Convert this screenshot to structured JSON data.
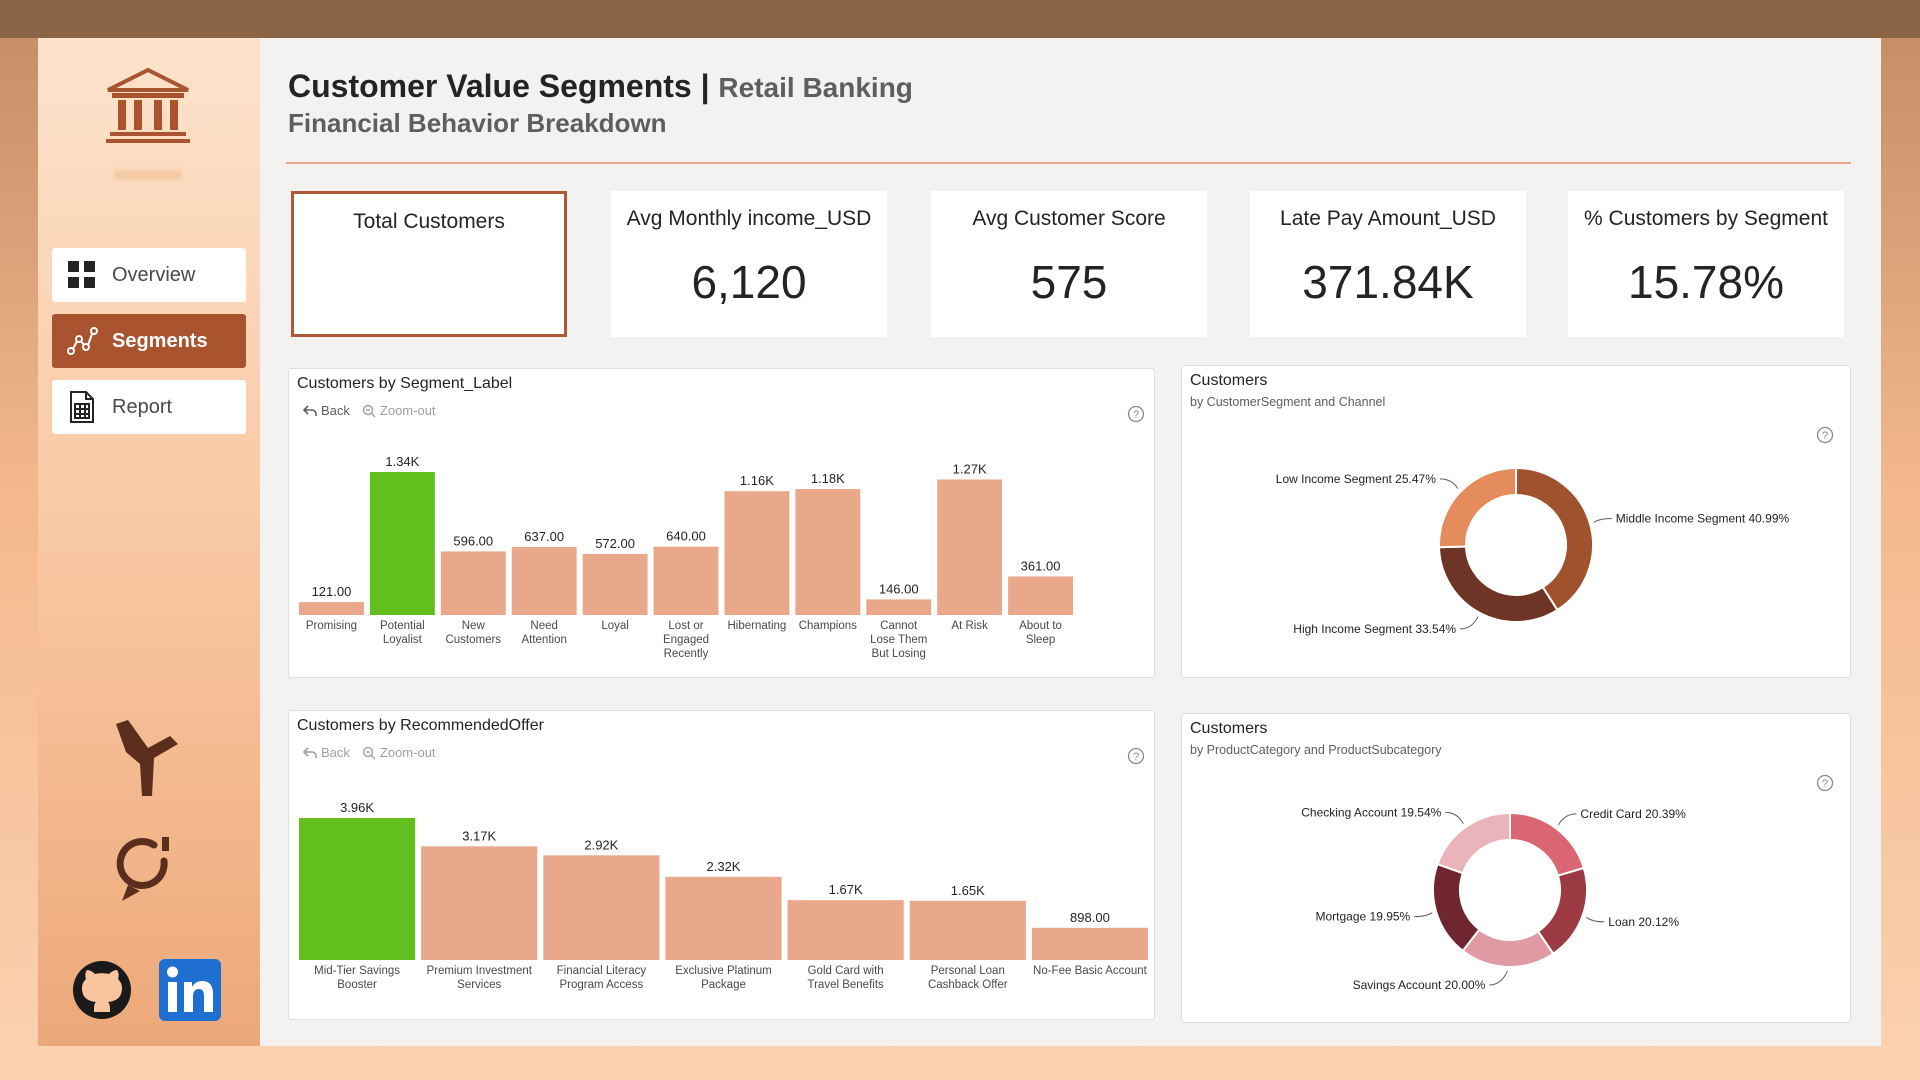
{
  "header": {
    "title": "Customer Value Segments |",
    "subtitle_inline": "Retail Banking",
    "subtitle": "Financial Behavior Breakdown"
  },
  "sidebar": {
    "nav": [
      {
        "label": "Overview",
        "icon": "grid-icon",
        "active": false
      },
      {
        "label": "Segments",
        "icon": "scatter-chart-icon",
        "active": true
      },
      {
        "label": "Report",
        "icon": "spreadsheet-icon",
        "active": false
      }
    ],
    "bottom_icons": [
      "power-bi-plane-icon",
      "chat-refresh-icon",
      "github-icon",
      "linkedin-icon"
    ]
  },
  "kpis": [
    {
      "label": "Total Customers",
      "value": "",
      "selected": true
    },
    {
      "label": "Avg Monthly income_USD",
      "value": "6,120",
      "selected": false
    },
    {
      "label": "Avg Customer Score",
      "value": "575",
      "selected": false
    },
    {
      "label": "Late Pay Amount_USD",
      "value": "371.84K",
      "selected": false
    },
    {
      "label": "% Customers by Segment",
      "value": "15.78%",
      "selected": false
    }
  ],
  "charts": {
    "segment": {
      "title": "Customers by Segment_Label",
      "back": "Back",
      "zoom": "Zoom-out"
    },
    "channel_donut": {
      "title": "Customers",
      "subtitle": "by CustomerSegment and Channel"
    },
    "offer": {
      "title": "Customers by RecommendedOffer",
      "back": "Back",
      "zoom": "Zoom-out"
    },
    "product_donut": {
      "title": "Customers",
      "subtitle": "by ProductCategory and ProductSubcategory"
    }
  },
  "colors": {
    "bar": "#e9a889",
    "highlight": "#62bf1d",
    "accent": "#a9532f",
    "channel_donut": [
      "#a0522d",
      "#6e3425",
      "#e58c5c"
    ],
    "product_donut": [
      "#d96672",
      "#9c3a44",
      "#e09aa3",
      "#6f2630",
      "#ebb4bb"
    ]
  },
  "chart_data": [
    {
      "type": "bar",
      "title": "Customers by Segment_Label",
      "categories": [
        "Promising",
        "Potential Loyalist",
        "New Customers",
        "Need Attention",
        "Loyal",
        "Lost or Engaged Recently",
        "Hibernating",
        "Champions",
        "Cannot Lose Them But Losing",
        "At Risk",
        "About to Sleep"
      ],
      "values": [
        121,
        1340,
        596,
        637,
        572,
        640,
        1160,
        1180,
        146,
        1270,
        361
      ],
      "data_labels": [
        "121.00",
        "1.34K",
        "596.00",
        "637.00",
        "572.00",
        "640.00",
        "1.16K",
        "1.18K",
        "146.00",
        "1.27K",
        "361.00"
      ],
      "highlight": [
        "Potential Loyalist"
      ],
      "ylim": [
        0,
        1340
      ]
    },
    {
      "type": "pie",
      "title": "Customers",
      "subtitle": "by CustomerSegment and Channel",
      "categories": [
        "Middle Income Segment",
        "High Income Segment",
        "Low Income Segment"
      ],
      "values": [
        40.99,
        33.54,
        25.47
      ],
      "data_labels": [
        "Middle Income Segment 40.99%",
        "High Income Segment 33.54%",
        "Low Income Segment 25.47%"
      ]
    },
    {
      "type": "bar",
      "title": "Customers by RecommendedOffer",
      "categories": [
        "Mid-Tier Savings Booster",
        "Premium Investment Services",
        "Financial Literacy Program Access",
        "Exclusive Platinum Package",
        "Gold Card with Travel Benefits",
        "Personal Loan Cashback Offer",
        "No-Fee Basic Account"
      ],
      "values": [
        3960,
        3170,
        2920,
        2320,
        1670,
        1650,
        898
      ],
      "data_labels": [
        "3.96K",
        "3.17K",
        "2.92K",
        "2.32K",
        "1.67K",
        "1.65K",
        "898.00"
      ],
      "highlight": [
        "Mid-Tier Savings Booster"
      ],
      "ylim": [
        0,
        3960
      ]
    },
    {
      "type": "pie",
      "title": "Customers",
      "subtitle": "by ProductCategory and ProductSubcategory",
      "categories": [
        "Credit Card",
        "Loan",
        "Savings Account",
        "Mortgage",
        "Checking Account"
      ],
      "values": [
        20.39,
        20.12,
        20.0,
        19.95,
        19.54
      ],
      "data_labels": [
        "Credit Card 20.39%",
        "Loan 20.12%",
        "Savings Account 20.00%",
        "Mortgage 19.95%",
        "Checking Account 19.54%"
      ]
    }
  ]
}
